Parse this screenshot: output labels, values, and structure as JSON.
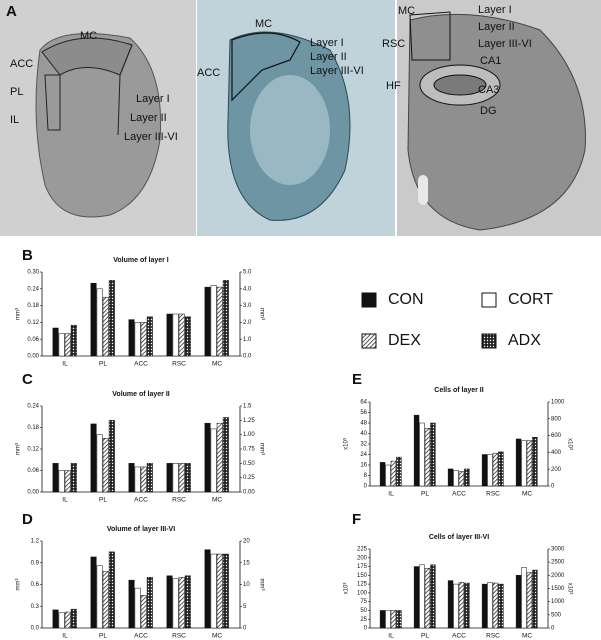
{
  "figure": {
    "panel_labels": [
      "A",
      "B",
      "C",
      "D",
      "E",
      "F"
    ]
  },
  "images": [
    {
      "labels": [
        "MC",
        "ACC",
        "PL",
        "IL",
        "Layer I",
        "Layer II",
        "Layer III-VI"
      ]
    },
    {
      "labels": [
        "MC",
        "ACC",
        "Layer I",
        "Layer II",
        "Layer III-VI"
      ]
    },
    {
      "labels": [
        "MC",
        "RSC",
        "HF",
        "Layer I",
        "Layer II",
        "Layer III-VI",
        "CA1",
        "CA3",
        "DG"
      ]
    }
  ],
  "chart_data": [
    {
      "type": "bar",
      "title": "Volume of layer I",
      "ylabel": "mm³",
      "y2label": "mm³",
      "categories": [
        "IL",
        "PL",
        "ACC",
        "RSC",
        "MC"
      ],
      "y2_categories": [
        "MC"
      ],
      "series": [
        {
          "name": "CON",
          "fill": "solid",
          "values": [
            0.1,
            0.26,
            0.13,
            0.15,
            4.1
          ]
        },
        {
          "name": "CORT",
          "fill": "open",
          "values": [
            0.08,
            0.24,
            0.12,
            0.15,
            4.2
          ]
        },
        {
          "name": "DEX",
          "fill": "hatch",
          "values": [
            0.08,
            0.21,
            0.12,
            0.15,
            4.1
          ]
        },
        {
          "name": "ADX",
          "fill": "dots",
          "values": [
            0.11,
            0.27,
            0.14,
            0.14,
            4.5
          ]
        }
      ],
      "ylim": [
        0,
        0.3
      ],
      "yticks": [
        {
          "value": 0,
          "label": "0.00"
        },
        {
          "value": 0.06,
          "label": "0.06"
        },
        0.12,
        0.18,
        0.24,
        {
          "value": 0.3,
          "label": "0.30"
        }
      ],
      "y2lim": [
        0,
        5
      ],
      "y2ticks": [
        {
          "value": 0,
          "label": "0.0"
        },
        {
          "value": 1,
          "label": "1.0"
        },
        {
          "value": 2,
          "label": "2.0"
        },
        {
          "value": 3,
          "label": "3.0"
        },
        {
          "value": 4,
          "label": "4.0"
        },
        {
          "value": 5,
          "label": "5.0"
        }
      ]
    },
    {
      "type": "bar",
      "title": "Volume of layer II",
      "ylabel": "mm³",
      "y2label": "mm³",
      "categories": [
        "IL",
        "PL",
        "ACC",
        "RSC",
        "MC"
      ],
      "y2_categories": [
        "MC"
      ],
      "series": [
        {
          "values": [
            0.08,
            0.19,
            0.08,
            0.08,
            1.2
          ]
        },
        {
          "values": [
            0.06,
            0.16,
            0.07,
            0.08,
            1.1
          ]
        },
        {
          "values": [
            0.06,
            0.15,
            0.07,
            0.08,
            1.2
          ]
        },
        {
          "values": [
            0.08,
            0.2,
            0.08,
            0.08,
            1.3
          ]
        }
      ],
      "ylim": [
        0,
        0.24
      ],
      "yticks": [
        {
          "value": 0,
          "label": "0.00"
        },
        {
          "value": 0.06,
          "label": "0.06"
        },
        0.12,
        0.18,
        0.24
      ],
      "y2lim": [
        0,
        1.5
      ],
      "y2ticks": [
        {
          "value": 0,
          "label": "0.00"
        },
        0.25,
        {
          "value": 0.5,
          "label": "0.50"
        },
        0.75,
        {
          "value": 1,
          "label": "1.00"
        },
        1.25,
        1.5
      ]
    },
    {
      "type": "bar",
      "title": "Volume of layer III-VI",
      "ylabel": "mm³",
      "y2label": "mm³",
      "categories": [
        "IL",
        "PL",
        "ACC",
        "RSC",
        "MC"
      ],
      "y2_categories": [
        "MC"
      ],
      "series": [
        {
          "values": [
            0.25,
            0.98,
            0.66,
            0.72,
            18
          ]
        },
        {
          "values": [
            0.21,
            0.86,
            0.55,
            0.68,
            17
          ]
        },
        {
          "values": [
            0.22,
            0.78,
            0.45,
            0.7,
            17
          ]
        },
        {
          "values": [
            0.26,
            1.05,
            0.7,
            0.72,
            17
          ]
        }
      ],
      "ylim": [
        0,
        1.2
      ],
      "yticks": [
        {
          "value": 0,
          "label": "0.0"
        },
        0.3,
        0.6,
        0.9,
        1.2
      ],
      "y2lim": [
        0,
        20
      ],
      "y2ticks": [
        0,
        5,
        10,
        15,
        20
      ]
    },
    {
      "type": "bar",
      "title": "Cells of layer II",
      "ylabel": "x10³",
      "y2label": "x10³",
      "categories": [
        "IL",
        "PL",
        "ACC",
        "RSC",
        "MC"
      ],
      "y2_categories": [
        "MC"
      ],
      "series": [
        {
          "values": [
            18,
            54,
            13,
            24,
            560
          ]
        },
        {
          "values": [
            16,
            48,
            12,
            24,
            540
          ]
        },
        {
          "values": [
            19,
            44,
            11,
            25,
            540
          ]
        },
        {
          "values": [
            22,
            48,
            13,
            26,
            580
          ]
        }
      ],
      "ylim": [
        0,
        64
      ],
      "yticks": [
        0,
        8,
        16,
        24,
        32,
        40,
        48,
        56,
        64
      ],
      "y2lim": [
        0,
        1000
      ],
      "y2ticks": [
        0,
        200,
        400,
        600,
        800,
        1000
      ]
    },
    {
      "type": "bar",
      "title": "Cells of layer III-VI",
      "ylabel": "x10³",
      "y2label": "x10³",
      "categories": [
        "IL",
        "PL",
        "ACC",
        "RSC",
        "MC"
      ],
      "y2_categories": [
        "MC"
      ],
      "series": [
        {
          "values": [
            50,
            175,
            135,
            125,
            2000
          ]
        },
        {
          "values": [
            50,
            180,
            125,
            130,
            2300
          ]
        },
        {
          "values": [
            50,
            170,
            130,
            128,
            2100
          ]
        },
        {
          "values": [
            50,
            180,
            128,
            125,
            2200
          ]
        }
      ],
      "ylim": [
        0,
        225
      ],
      "yticks": [
        0,
        25,
        50,
        75,
        100,
        125,
        150,
        175,
        200,
        225
      ],
      "y2lim": [
        0,
        3000
      ],
      "y2ticks": [
        0,
        500,
        1000,
        1500,
        2000,
        2500,
        3000
      ]
    }
  ]
}
